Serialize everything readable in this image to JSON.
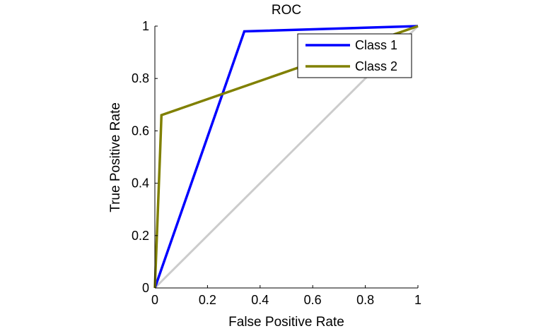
{
  "chart_data": {
    "type": "line",
    "title": "ROC",
    "xlabel": "False Positive Rate",
    "ylabel": "True Positive Rate",
    "xlim": [
      0,
      1
    ],
    "ylim": [
      0,
      1
    ],
    "x_ticks": [
      "0",
      "0.2",
      "0.4",
      "0.6",
      "0.8",
      "1"
    ],
    "y_ticks": [
      "0",
      "0.2",
      "0.4",
      "0.6",
      "0.8",
      "1"
    ],
    "grid": false,
    "legend_position": "top-right",
    "series": [
      {
        "name": "Class 1",
        "color": "#0000ff",
        "x": [
          0,
          0.34,
          1
        ],
        "y": [
          0,
          0.98,
          1
        ]
      },
      {
        "name": "Class 2",
        "color": "#808000",
        "x": [
          0,
          0.02,
          0.025,
          1
        ],
        "y": [
          0,
          0.52,
          0.66,
          1
        ]
      }
    ],
    "reference_line": {
      "color": "#cccccc",
      "x": [
        0,
        1
      ],
      "y": [
        0,
        1
      ]
    }
  }
}
